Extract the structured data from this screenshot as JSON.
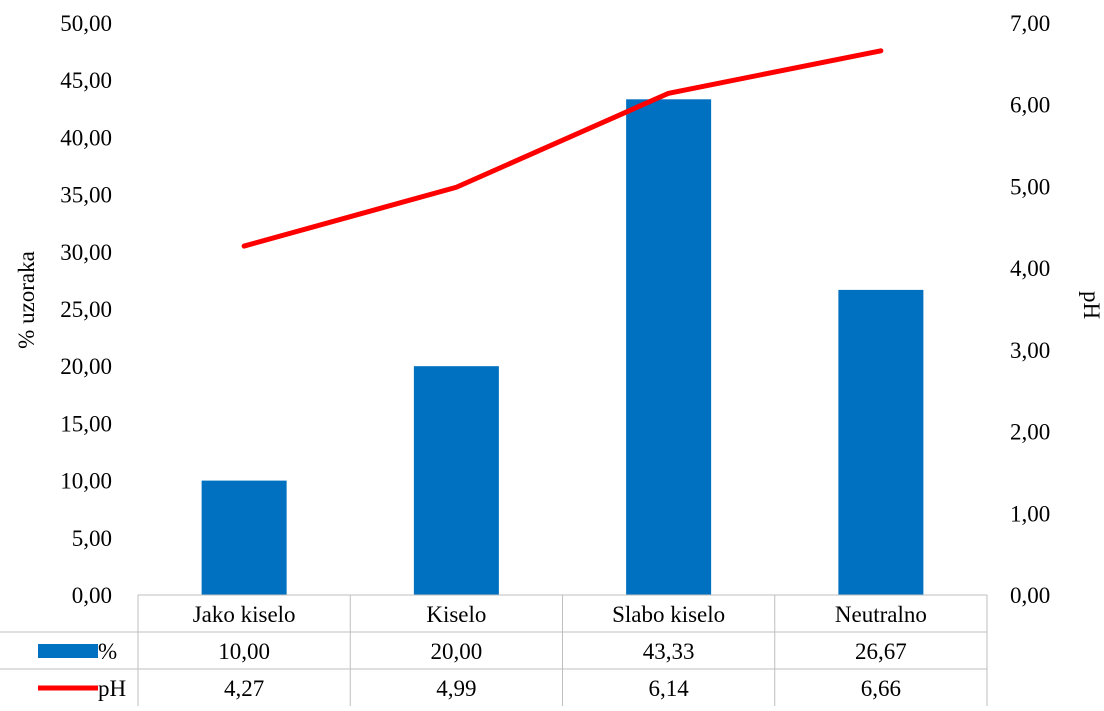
{
  "chart_data": {
    "type": "bar",
    "categories": [
      "Jako kiselo",
      "Kiselo",
      "Slabo kiselo",
      "Neutralno"
    ],
    "series": [
      {
        "name": "%",
        "chart_type": "bar",
        "axis": "left",
        "color": "#0070C0",
        "values": [
          10.0,
          20.0,
          43.33,
          26.67
        ],
        "labels": [
          "10,00",
          "20,00",
          "43,33",
          "26,67"
        ]
      },
      {
        "name": "pH",
        "chart_type": "line",
        "axis": "right",
        "color": "#FF0000",
        "values": [
          4.27,
          4.99,
          6.14,
          6.66
        ],
        "labels": [
          "4,27",
          "4,99",
          "6,14",
          "6,66"
        ]
      }
    ],
    "y_left": {
      "label": "% uzoraka",
      "ylim": [
        0,
        50
      ],
      "ticks": [
        "0,00",
        "5,00",
        "10,00",
        "15,00",
        "20,00",
        "25,00",
        "30,00",
        "35,00",
        "40,00",
        "45,00",
        "50,00"
      ]
    },
    "y_right": {
      "label": "pH",
      "ylim": [
        0,
        7
      ],
      "ticks": [
        "0,00",
        "1,00",
        "2,00",
        "3,00",
        "4,00",
        "5,00",
        "6,00",
        "7,00"
      ]
    },
    "grid": false,
    "data_table": true
  }
}
